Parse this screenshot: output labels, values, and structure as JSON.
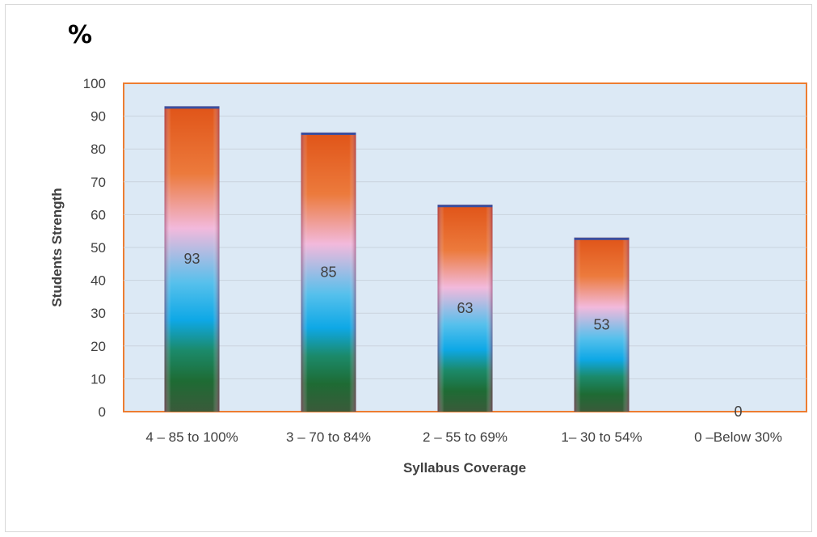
{
  "chart_data": {
    "type": "bar",
    "title": "%",
    "xlabel": "Syllabus Coverage",
    "ylabel": "Students Strength",
    "categories": [
      "4 – 85 to 100%",
      "3 – 70 to 84%",
      "2 – 55 to 69%",
      "1– 30 to 54%",
      "0 –Below 30%"
    ],
    "values": [
      93,
      85,
      63,
      53,
      0
    ],
    "ylim": [
      0,
      100
    ],
    "yticks": [
      "0",
      "10",
      "20",
      "30",
      "40",
      "50",
      "60",
      "70",
      "80",
      "90",
      "100"
    ],
    "grid": true,
    "legend": "none",
    "data_labels": [
      "93",
      "85",
      "63",
      "53",
      "0"
    ],
    "colors": {
      "plot_background": "#dce9f5",
      "plot_border": "#ed7d31",
      "gridline": "#c9d3dd",
      "bar_top": "#e8601a",
      "bar_middle_pink": "#f0b6d8",
      "bar_lower_blue": "#14aee8",
      "bar_bottom_green": "#1e6b34"
    }
  }
}
